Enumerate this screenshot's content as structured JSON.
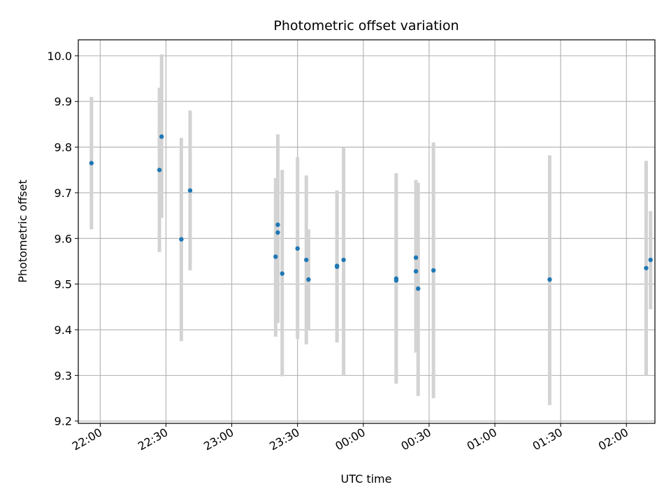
{
  "chart_data": {
    "type": "scatter",
    "title": "Photometric offset variation",
    "xlabel": "UTC time",
    "ylabel": "Photometric offset",
    "grid": true,
    "legend": "none",
    "x_ticks": [
      "22:00",
      "22:30",
      "23:00",
      "23:30",
      "00:00",
      "00:30",
      "01:00",
      "01:30",
      "02:00"
    ],
    "y_ticks": [
      "9.2",
      "9.3",
      "9.4",
      "9.5",
      "9.6",
      "9.7",
      "9.8",
      "9.9",
      "10.0"
    ],
    "xlim": [
      "21:50",
      "02:13"
    ],
    "ylim": [
      9.195,
      10.035
    ],
    "colors": {
      "marker": "#1f77b4",
      "errorbar": "#d3d3d3",
      "grid": "#b0b0b0"
    },
    "series": [
      {
        "points": [
          {
            "x": "21:56",
            "y": 9.765,
            "ylow": 9.62,
            "yhigh": 9.91
          },
          {
            "x": "22:27",
            "y": 9.75,
            "ylow": 9.57,
            "yhigh": 9.93
          },
          {
            "x": "22:28",
            "y": 9.823,
            "ylow": 9.645,
            "yhigh": 10.003
          },
          {
            "x": "22:37",
            "y": 9.598,
            "ylow": 9.375,
            "yhigh": 9.82
          },
          {
            "x": "22:41",
            "y": 9.705,
            "ylow": 9.53,
            "yhigh": 9.88
          },
          {
            "x": "23:20",
            "y": 9.56,
            "ylow": 9.385,
            "yhigh": 9.732
          },
          {
            "x": "23:21",
            "y": 9.63,
            "ylow": 9.43,
            "yhigh": 9.828
          },
          {
            "x": "23:21",
            "y": 9.613,
            "ylow": 9.415,
            "yhigh": 9.81
          },
          {
            "x": "23:23",
            "y": 9.523,
            "ylow": 9.298,
            "yhigh": 9.75
          },
          {
            "x": "23:30",
            "y": 9.578,
            "ylow": 9.38,
            "yhigh": 9.778
          },
          {
            "x": "23:34",
            "y": 9.553,
            "ylow": 9.368,
            "yhigh": 9.738
          },
          {
            "x": "23:35",
            "y": 9.51,
            "ylow": 9.4,
            "yhigh": 9.62
          },
          {
            "x": "23:48",
            "y": 9.54,
            "ylow": 9.372,
            "yhigh": 9.705
          },
          {
            "x": "23:48",
            "y": 9.538,
            "ylow": 9.375,
            "yhigh": 9.7
          },
          {
            "x": "23:51",
            "y": 9.553,
            "ylow": 9.3,
            "yhigh": 9.8
          },
          {
            "x": "00:15",
            "y": 9.512,
            "ylow": 9.282,
            "yhigh": 9.743
          },
          {
            "x": "00:15",
            "y": 9.508,
            "ylow": 9.282,
            "yhigh": 9.738
          },
          {
            "x": "00:24",
            "y": 9.558,
            "ylow": 9.385,
            "yhigh": 9.728
          },
          {
            "x": "00:24",
            "y": 9.528,
            "ylow": 9.35,
            "yhigh": 9.71
          },
          {
            "x": "00:25",
            "y": 9.49,
            "ylow": 9.255,
            "yhigh": 9.722
          },
          {
            "x": "00:32",
            "y": 9.53,
            "ylow": 9.25,
            "yhigh": 9.81
          },
          {
            "x": "01:25",
            "y": 9.51,
            "ylow": 9.235,
            "yhigh": 9.782
          },
          {
            "x": "02:09",
            "y": 9.535,
            "ylow": 9.3,
            "yhigh": 9.77
          },
          {
            "x": "02:11",
            "y": 9.553,
            "ylow": 9.445,
            "yhigh": 9.66
          }
        ]
      }
    ]
  }
}
